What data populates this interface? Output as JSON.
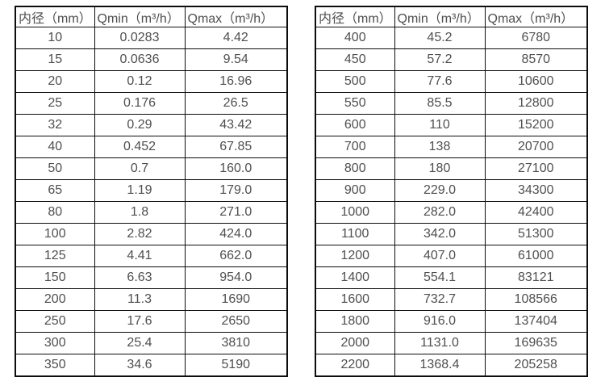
{
  "colors": {
    "border": "#0d0d0d",
    "text": "#4f4f4f",
    "background": "#ffffff"
  },
  "tables": [
    {
      "name": "flow-table-small-diameters",
      "headers": [
        "内径（mm）",
        "Qmin（m³/h）",
        "Qmax（m³/h）"
      ],
      "rows": [
        [
          "10",
          "0.0283",
          "4.42"
        ],
        [
          "15",
          "0.0636",
          "9.54"
        ],
        [
          "20",
          "0.12",
          "16.96"
        ],
        [
          "25",
          "0.176",
          "26.5"
        ],
        [
          "32",
          "0.29",
          "43.42"
        ],
        [
          "40",
          "0.452",
          "67.85"
        ],
        [
          "50",
          "0.7",
          "160.0"
        ],
        [
          "65",
          "1.19",
          "179.0"
        ],
        [
          "80",
          "1.8",
          "271.0"
        ],
        [
          "100",
          "2.82",
          "424.0"
        ],
        [
          "125",
          "4.41",
          "662.0"
        ],
        [
          "150",
          "6.63",
          "954.0"
        ],
        [
          "200",
          "11.3",
          "1690"
        ],
        [
          "250",
          "17.6",
          "2650"
        ],
        [
          "300",
          "25.4",
          "3810"
        ],
        [
          "350",
          "34.6",
          "5190"
        ]
      ]
    },
    {
      "name": "flow-table-large-diameters",
      "headers": [
        "内径（mm）",
        "Qmin（m³/h）",
        "Qmax（m³/h）"
      ],
      "rows": [
        [
          "400",
          "45.2",
          "6780"
        ],
        [
          "450",
          "57.2",
          "8570"
        ],
        [
          "500",
          "77.6",
          "10600"
        ],
        [
          "550",
          "85.5",
          "12800"
        ],
        [
          "600",
          "110",
          "15200"
        ],
        [
          "700",
          "138",
          "20700"
        ],
        [
          "800",
          "180",
          "27100"
        ],
        [
          "900",
          "229.0",
          "34300"
        ],
        [
          "1000",
          "282.0",
          "42400"
        ],
        [
          "1100",
          "342.0",
          "51300"
        ],
        [
          "1200",
          "407.0",
          "61000"
        ],
        [
          "1400",
          "554.1",
          "83121"
        ],
        [
          "1600",
          "732.7",
          "108566"
        ],
        [
          "1800",
          "916.0",
          "137404"
        ],
        [
          "2000",
          "1131.0",
          "169635"
        ],
        [
          "2200",
          "1368.4",
          "205258"
        ]
      ]
    }
  ]
}
